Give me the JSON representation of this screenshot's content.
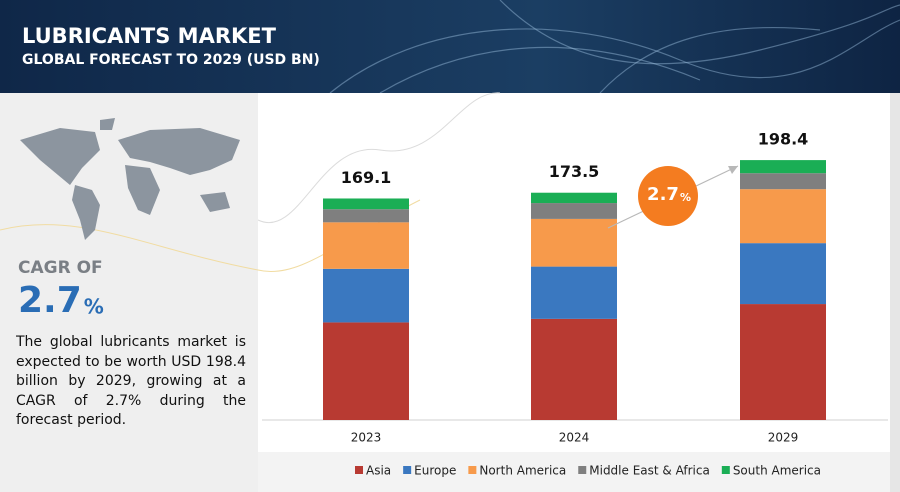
{
  "header": {
    "title": "LUBRICANTS MARKET",
    "subtitle": "GLOBAL FORECAST TO 2029 (USD BN)"
  },
  "sidebar": {
    "cagr_label": "CAGR OF",
    "cagr_value": "2.7",
    "cagr_unit": "%",
    "description": "The global lubricants market is expected to be worth USD 198.4 billion by 2029, growing at a CAGR of 2.7% during the forecast period."
  },
  "chart_data": {
    "type": "stacked_bar",
    "categories": [
      "2023",
      "2024",
      "2029"
    ],
    "totals": [
      169.1,
      173.5,
      198.4
    ],
    "series": [
      {
        "name": "Asia",
        "color": "#b83a32",
        "values": [
          74.5,
          77.2,
          88.5
        ]
      },
      {
        "name": "Europe",
        "color": "#3a78c0",
        "values": [
          40.9,
          39.9,
          46.5
        ]
      },
      {
        "name": "North America",
        "color": "#f79a4b",
        "values": [
          35.5,
          36.4,
          41.2
        ]
      },
      {
        "name": "Middle East & Africa",
        "color": "#7f7f7f",
        "values": [
          10.0,
          12.1,
          12.2
        ]
      },
      {
        "name": "South America",
        "color": "#1aae55",
        "values": [
          8.2,
          7.9,
          10.0
        ]
      }
    ],
    "annotation": {
      "value": "2.7",
      "unit": "%",
      "color": "#f47c20"
    },
    "legend": "bottom"
  }
}
